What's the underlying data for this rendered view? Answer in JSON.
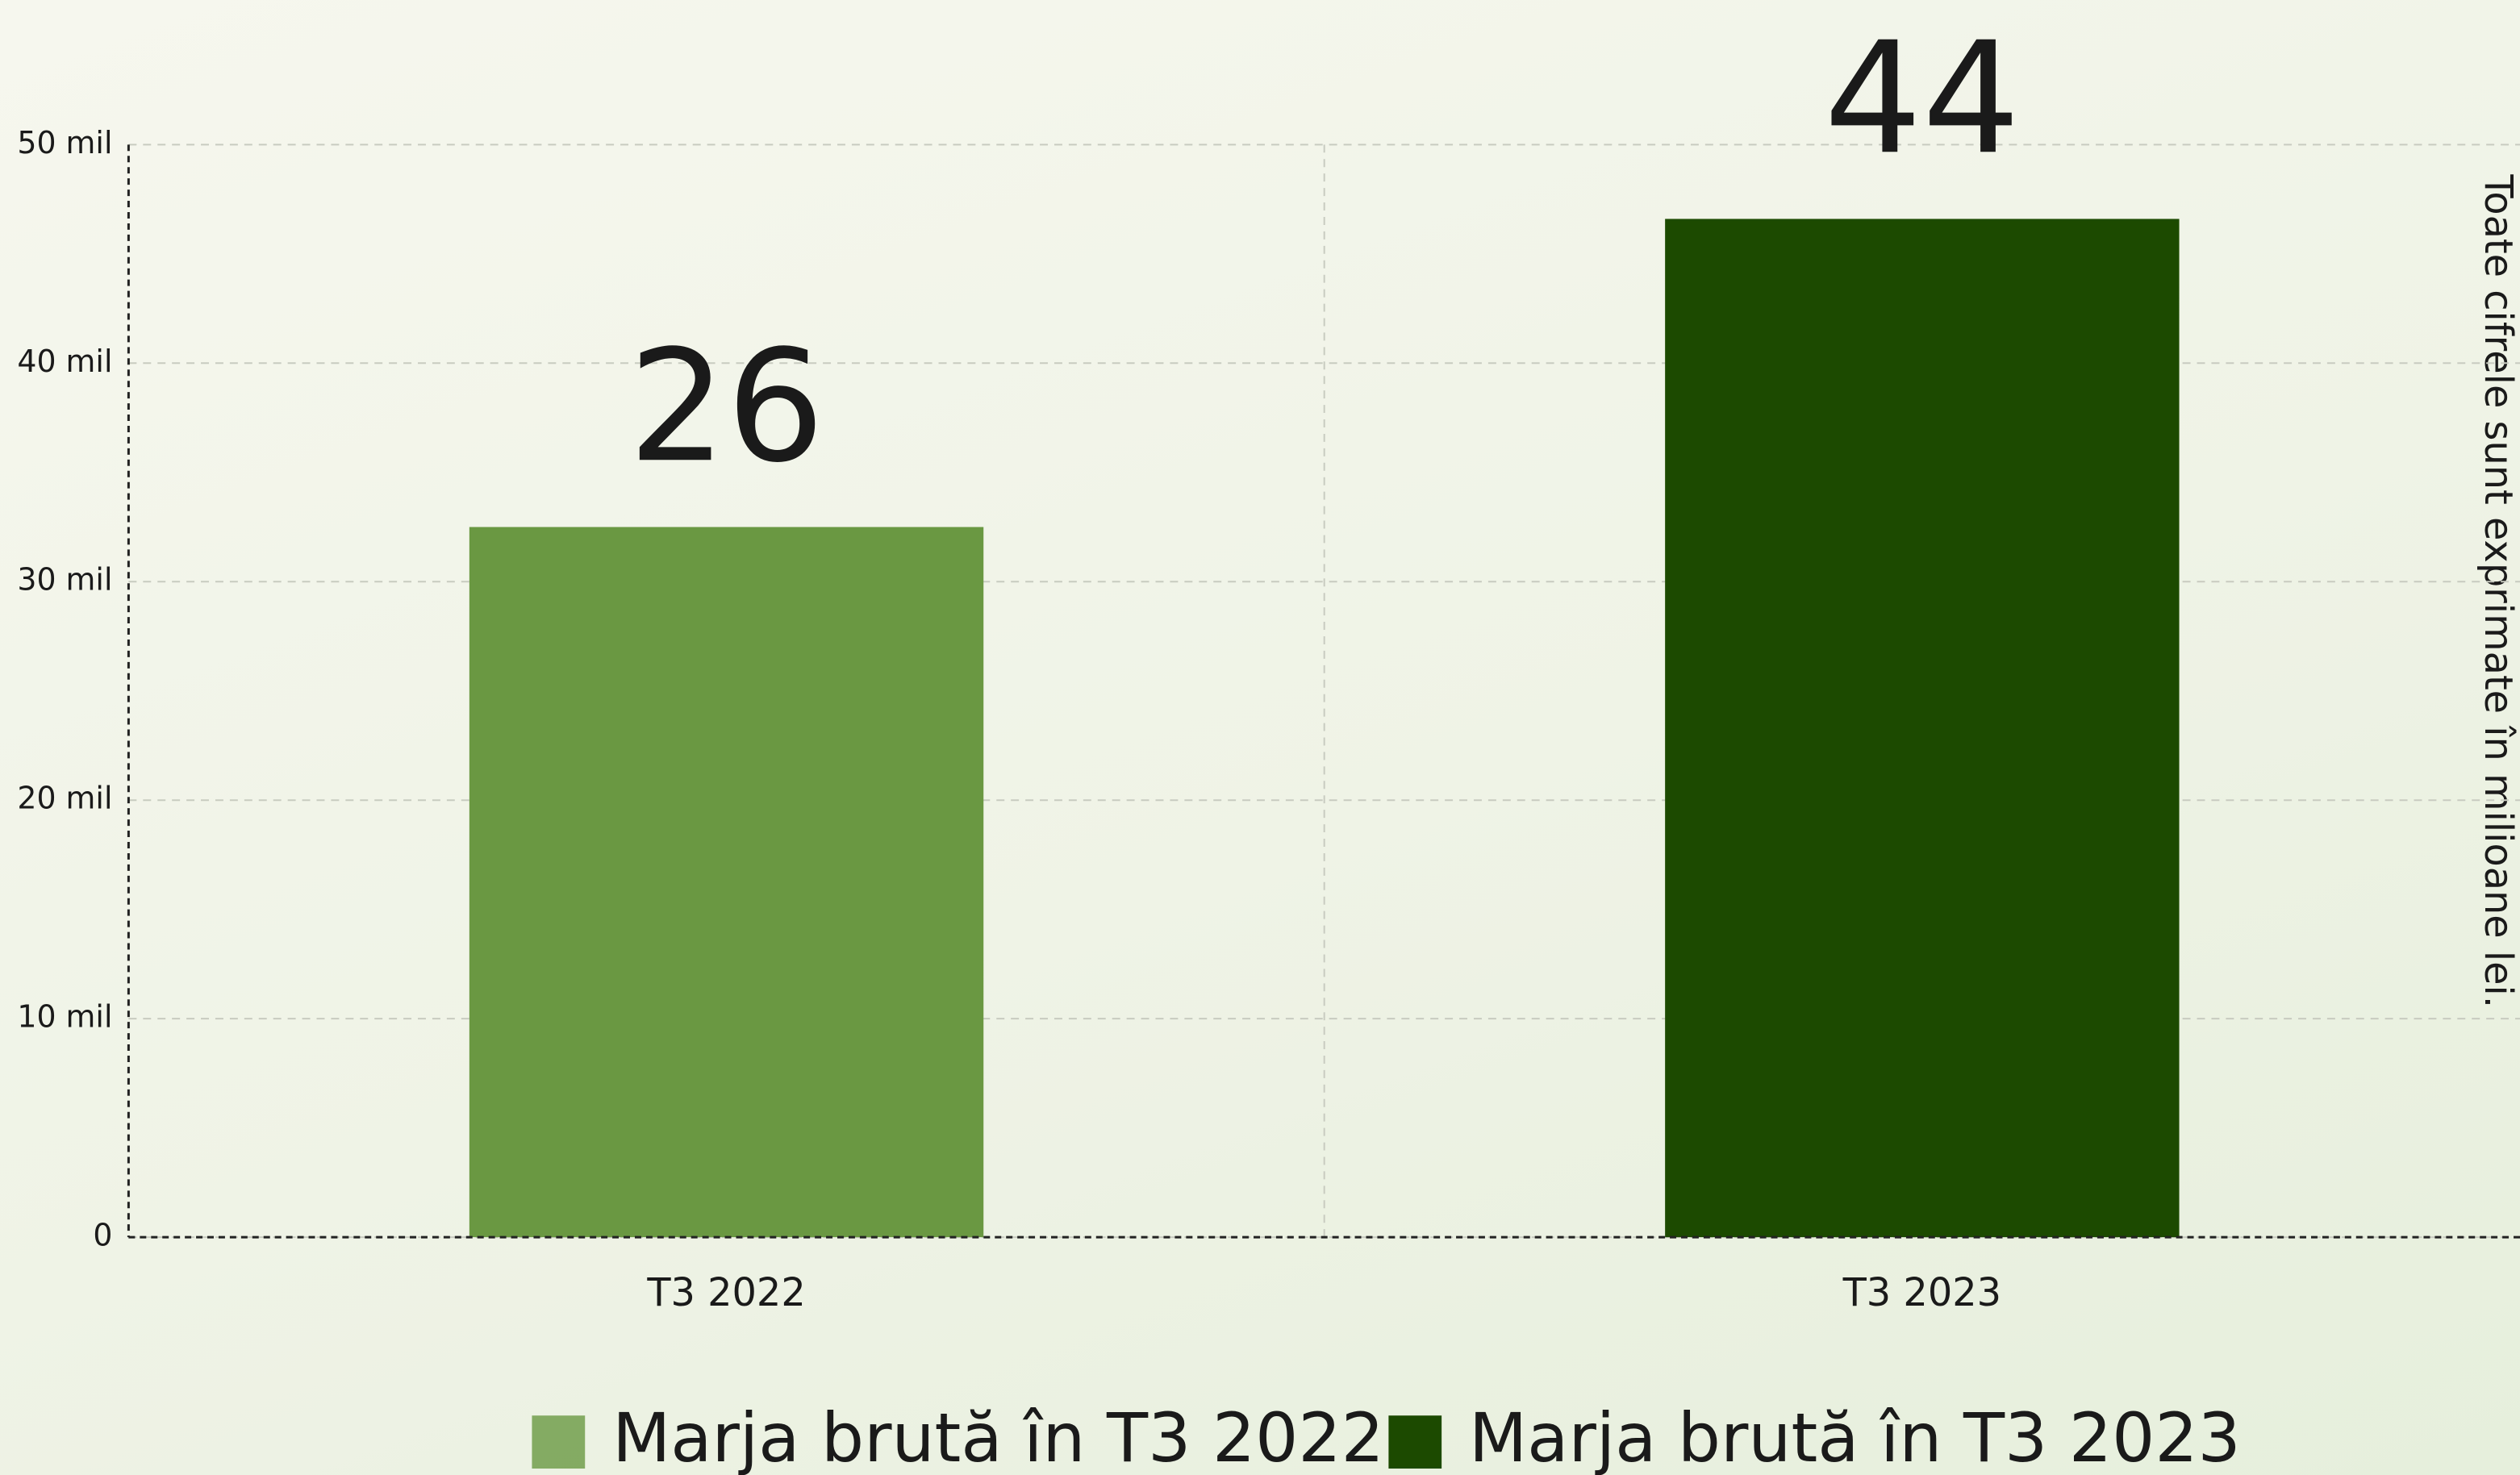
{
  "chart_data": {
    "type": "bar",
    "categories": [
      "T3 2022",
      "T3 2023"
    ],
    "series": [
      {
        "name": "Marja brută în T3 2022",
        "color": "#6a9842",
        "values": [
          32500000,
          null
        ]
      },
      {
        "name": "Marja brută în T3 2023",
        "color": "#1c4a00",
        "values": [
          null,
          46600000
        ]
      }
    ],
    "annotations": [
      "26",
      "44"
    ],
    "side_note": "Toate cifrele sunt exprimate în milioane lei.",
    "ylim": [
      0,
      50000000
    ],
    "yticks": [
      0,
      {
        "value": 10000000,
        "label": "10 mil"
      },
      {
        "value": 20000000,
        "label": "20 mil"
      },
      {
        "value": 30000000,
        "label": "30 mil"
      },
      {
        "value": 40000000,
        "label": "40 mil"
      },
      {
        "value": 50000000,
        "label": "50 mil"
      }
    ],
    "grid": true,
    "legend": "bottom"
  }
}
